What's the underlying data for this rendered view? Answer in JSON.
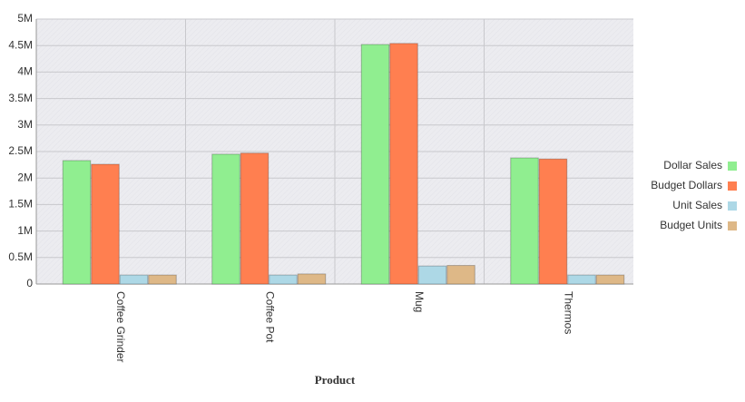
{
  "chart_data": {
    "type": "bar",
    "x_label": "Product",
    "categories": [
      "Coffee Grinder",
      "Coffee Pot",
      "Mug",
      "Thermos"
    ],
    "series": [
      {
        "name": "Dollar Sales",
        "color": "#90ee90",
        "values": [
          2330000,
          2450000,
          4520000,
          2380000
        ]
      },
      {
        "name": "Budget Dollars",
        "color": "#ff7f50",
        "values": [
          2260000,
          2470000,
          4540000,
          2360000
        ]
      },
      {
        "name": "Unit Sales",
        "color": "#add8e6",
        "values": [
          170000,
          170000,
          340000,
          170000
        ]
      },
      {
        "name": "Budget Units",
        "color": "#deb887",
        "values": [
          170000,
          190000,
          350000,
          170000
        ]
      }
    ],
    "ylim": [
      0,
      5000000
    ],
    "yticks": [
      0,
      {
        "value": 500000,
        "label": "0.5M"
      },
      {
        "value": 1000000,
        "label": "1M"
      },
      {
        "value": 1500000,
        "label": "1.5M"
      },
      {
        "value": 2000000,
        "label": "2M"
      },
      {
        "value": 2500000,
        "label": "2.5M"
      },
      {
        "value": 3000000,
        "label": "3M"
      },
      {
        "value": 3500000,
        "label": "3.5M"
      },
      {
        "value": 4000000,
        "label": "4M"
      },
      {
        "value": 4500000,
        "label": "4.5M"
      },
      {
        "value": 5000000,
        "label": "5M"
      }
    ],
    "grid": true,
    "legend": "right"
  }
}
